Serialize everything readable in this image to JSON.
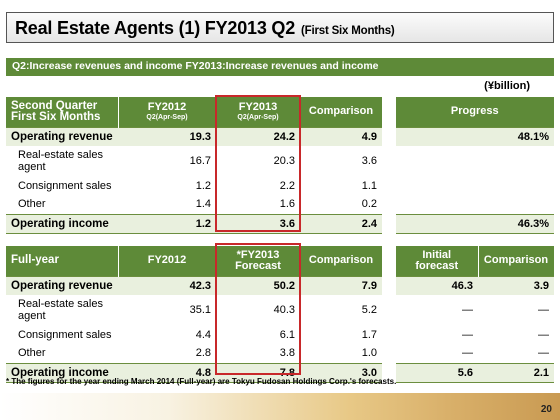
{
  "title": {
    "main": "Real Estate Agents (1) FY2013 Q2",
    "sub": "(First Six Months)"
  },
  "banner": "Q2:Increase revenues and income  FY2013:Increase revenues and income",
  "unit": "(¥billion)",
  "top_table": {
    "headers": {
      "label_line1": "Second Quarter",
      "label_line2": "First Six Months",
      "col1": "FY2012",
      "col1_sub": "Q2(Apr-Sep)",
      "col2": "FY2013",
      "col2_sub": "Q2(Apr-Sep)",
      "col3": "Comparison",
      "col4": "Progress"
    },
    "rows": [
      {
        "label": "Operating revenue",
        "c1": "19.3",
        "c2": "24.2",
        "c3": "4.9",
        "c4": "48.1%"
      },
      {
        "label": "Real-estate sales agent",
        "c1": "16.7",
        "c2": "20.3",
        "c3": "3.6",
        "c4": ""
      },
      {
        "label": "Consignment sales",
        "c1": "1.2",
        "c2": "2.2",
        "c3": "1.1",
        "c4": ""
      },
      {
        "label": "Other",
        "c1": "1.4",
        "c2": "1.6",
        "c3": "0.2",
        "c4": ""
      },
      {
        "label": "Operating income",
        "c1": "1.2",
        "c2": "3.6",
        "c3": "2.4",
        "c4": "46.3%"
      }
    ]
  },
  "bottom_table": {
    "headers": {
      "label": "Full-year",
      "col1": "FY2012",
      "col2_line1": "*FY2013",
      "col2_line2": "Forecast",
      "col3": "Comparison",
      "col4_line1": "Initial",
      "col4_line2": "forecast",
      "col5": "Comparison"
    },
    "rows": [
      {
        "label": "Operating revenue",
        "c1": "42.3",
        "c2": "50.2",
        "c3": "7.9",
        "c4": "46.3",
        "c5": "3.9"
      },
      {
        "label": "Real-estate sales agent",
        "c1": "35.1",
        "c2": "40.3",
        "c3": "5.2",
        "c4": "—",
        "c5": "—"
      },
      {
        "label": "Consignment sales",
        "c1": "4.4",
        "c2": "6.1",
        "c3": "1.7",
        "c4": "—",
        "c5": "—"
      },
      {
        "label": "Other",
        "c1": "2.8",
        "c2": "3.8",
        "c3": "1.0",
        "c4": "—",
        "c5": "—"
      },
      {
        "label": "Operating income",
        "c1": "4.8",
        "c2": "7.8",
        "c3": "3.0",
        "c4": "5.6",
        "c5": "2.1"
      }
    ]
  },
  "footnote": "* The figures for the year ending March 2014 (Full-year) are Tokyu Fudosan Holdings Corp.'s forecasts.",
  "page_number": "20"
}
